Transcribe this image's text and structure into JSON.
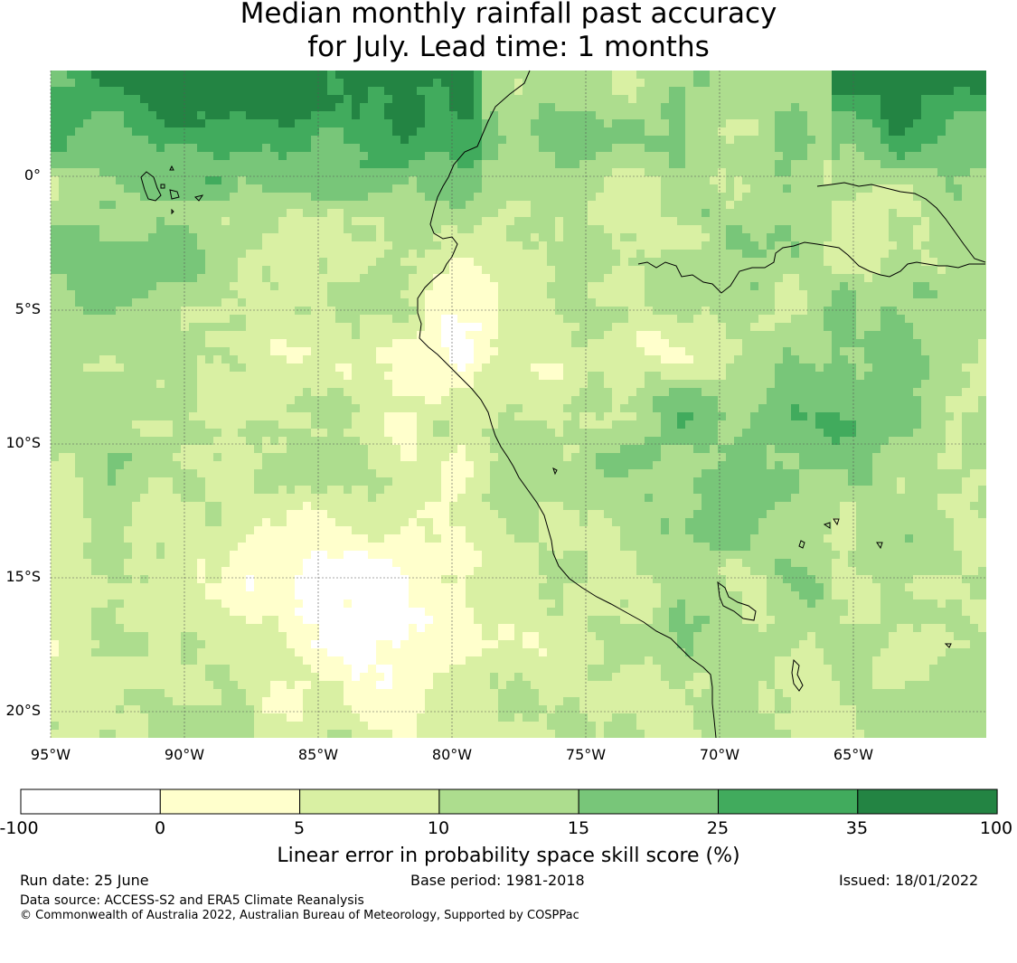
{
  "title": {
    "line1": "Median monthly rainfall past accuracy",
    "line2": "for July. Lead time: 1 months"
  },
  "map": {
    "lat_labels": [
      "0°",
      "5°S",
      "10°S",
      "15°S",
      "20°S"
    ],
    "lon_labels": [
      "95°W",
      "90°W",
      "85°W",
      "80°W",
      "75°W",
      "70°W",
      "65°W"
    ]
  },
  "colorbar": {
    "ticks": [
      "-100",
      "0",
      "5",
      "10",
      "15",
      "25",
      "35",
      "100"
    ],
    "bins": [
      {
        "from": -100,
        "to": 0,
        "color": "#ffffff"
      },
      {
        "from": 0,
        "to": 5,
        "color": "#ffffcc"
      },
      {
        "from": 5,
        "to": 10,
        "color": "#d9f0a3"
      },
      {
        "from": 10,
        "to": 15,
        "color": "#addd8e"
      },
      {
        "from": 15,
        "to": 25,
        "color": "#78c679"
      },
      {
        "from": 25,
        "to": 35,
        "color": "#41ab5d"
      },
      {
        "from": 35,
        "to": 100,
        "color": "#238443"
      }
    ],
    "label": "Linear error in probability space skill score (%)"
  },
  "footer": {
    "run_date": "Run date: 25 June",
    "base_period": "Base period: 1981-2018",
    "issued": "Issued: 18/01/2022",
    "data_source": "Data source: ACCESS-S2 and ERA5 Climate Reanalysis",
    "copyright": "© Commonwealth of Australia 2022, Australian Bureau of Meteorology, Supported by COSPPac"
  }
}
